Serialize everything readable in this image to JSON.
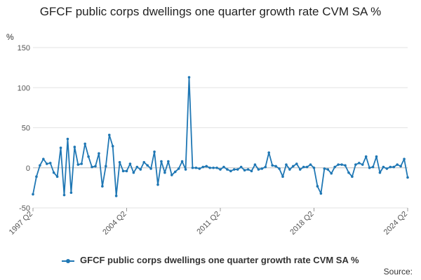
{
  "chart_data": {
    "type": "line",
    "title": "GFCF public corps dwellings one quarter growth rate CVM SA %",
    "ylabel": "%",
    "ylim": [
      -50,
      150
    ],
    "yticks": [
      "150",
      "100",
      "50",
      "0",
      "-50"
    ],
    "xtick_labels": [
      "1997 Q2",
      "2004 Q2",
      "2011 Q2",
      "2018 Q2",
      "2024 Q2"
    ],
    "x_start": "1997 Q2",
    "x_end": "2024 Q2",
    "grid": "horizontal",
    "legend_position": "bottom",
    "series": [
      {
        "name": "GFCF public corps dwellings one quarter growth rate CVM SA %",
        "color": "#1f77b4",
        "values": [
          -33,
          -11,
          3,
          11,
          5,
          6,
          -6,
          -11,
          25,
          -34,
          36,
          -31,
          26,
          4,
          5,
          30,
          14,
          1,
          2,
          18,
          -23,
          2,
          41,
          27,
          -35,
          7,
          -4,
          -4,
          5,
          -6,
          1,
          -2,
          7,
          3,
          -1,
          20,
          -21,
          8,
          -6,
          8,
          -9,
          -5,
          -1,
          8,
          -2,
          113,
          0,
          0,
          -1,
          1,
          2,
          0,
          0,
          0,
          -2,
          1,
          -2,
          -4,
          -2,
          -2,
          1,
          -3,
          -2,
          -4,
          4,
          -2,
          -1,
          1,
          19,
          3,
          2,
          -1,
          -11,
          4,
          -2,
          2,
          5,
          -2,
          1,
          1,
          4,
          0,
          -23,
          -32,
          -1,
          -2,
          -7,
          1,
          4,
          4,
          3,
          -6,
          -11,
          4,
          6,
          4,
          14,
          0,
          1,
          14,
          -6,
          1,
          -1,
          1,
          1,
          4,
          2,
          11,
          -12
        ]
      }
    ]
  },
  "legend": {
    "label": "GFCF public corps dwellings one quarter growth rate CVM SA %"
  },
  "source": "Source:"
}
